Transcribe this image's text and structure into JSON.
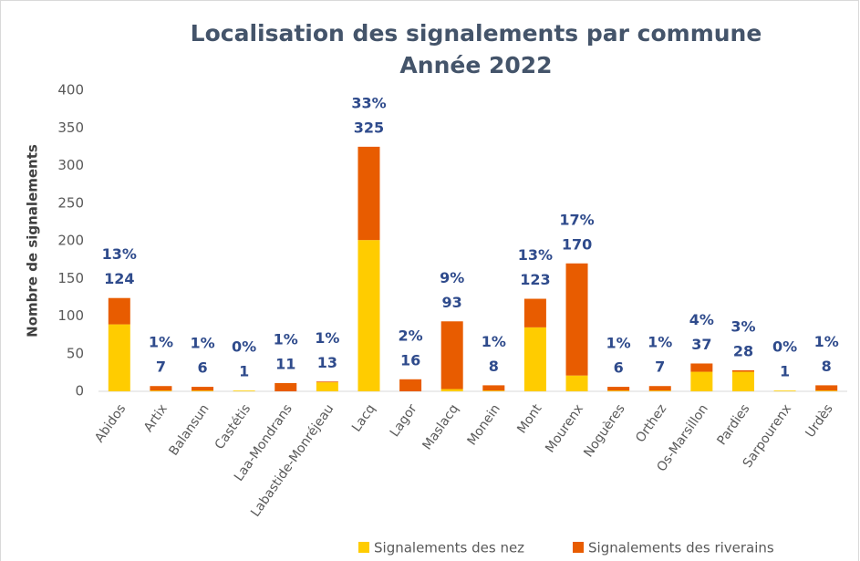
{
  "chart_data": {
    "type": "stacked_bar",
    "title": "Localisation des signalements par commune",
    "subtitle": "Année 2022",
    "y_label": "Nombre de signalements",
    "categories": [
      "Abidos",
      "Artix",
      "Balansun",
      "Castétis",
      "Laa-Mondrans",
      "Labastide-Monréjeau",
      "Lacq",
      "Lagor",
      "Maslacq",
      "Monein",
      "Mont",
      "Mourenx",
      "Noguères",
      "Orthez",
      "Os-Marsillon",
      "Pardies",
      "Sarpourenx",
      "Urdès"
    ],
    "series": [
      {
        "name": "Signalements des nez",
        "color": "#ffcc00",
        "values": [
          89,
          1,
          1,
          1,
          0,
          12,
          201,
          0,
          3,
          1,
          85,
          21,
          1,
          1,
          26,
          26,
          1,
          1
        ]
      },
      {
        "name": "Signalements des riverains",
        "color": "#e85c00",
        "values": [
          35,
          6,
          5,
          0,
          11,
          1,
          124,
          16,
          90,
          7,
          38,
          149,
          5,
          6,
          11,
          2,
          0,
          7
        ]
      }
    ],
    "totals": [
      124,
      7,
      6,
      1,
      11,
      13,
      325,
      16,
      93,
      8,
      123,
      170,
      6,
      7,
      37,
      28,
      1,
      8
    ],
    "percent_labels": [
      "13%",
      "1%",
      "1%",
      "0%",
      "1%",
      "1%",
      "33%",
      "2%",
      "9%",
      "1%",
      "13%",
      "17%",
      "1%",
      "1%",
      "4%",
      "3%",
      "0%",
      "1%"
    ],
    "ylim": [
      0,
      400
    ],
    "yticks": [
      0,
      50,
      100,
      150,
      200,
      250,
      300,
      350,
      400
    ],
    "grid": false,
    "legend": "bottom"
  }
}
